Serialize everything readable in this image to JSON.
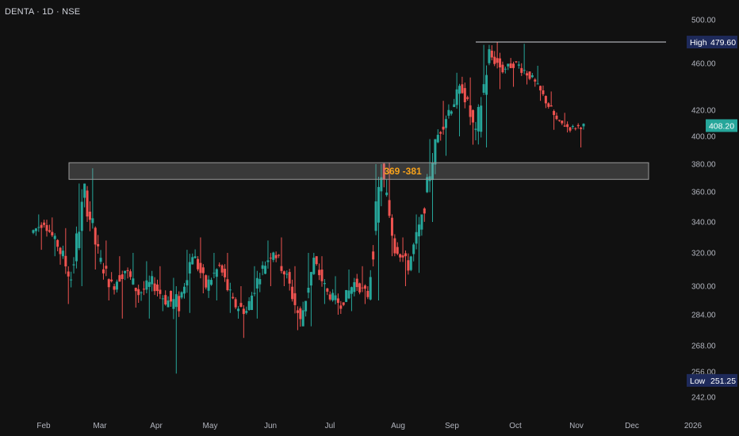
{
  "symbol": {
    "title": "DENTA · 1D · NSE"
  },
  "chart_data": {
    "type": "candlestick",
    "title": "DENTA · 1D · NSE",
    "xlabel": "",
    "ylabel": "",
    "x_ticks": [
      "Feb",
      "Mar",
      "Apr",
      "May",
      "Jun",
      "Jul",
      "Aug",
      "Sep",
      "Oct",
      "Nov",
      "Dec",
      "2026"
    ],
    "y_ticks": [
      "500.00",
      "460.00",
      "420.00",
      "400.00",
      "380.00",
      "360.00",
      "340.00",
      "320.00",
      "300.00",
      "284.00",
      "268.00",
      "256.00",
      "242.00"
    ],
    "ylim": [
      236,
      510
    ],
    "high": {
      "label": "High",
      "value": "479.60"
    },
    "low": {
      "label": "Low",
      "value": "251.25"
    },
    "last_price": "408.20",
    "zone": {
      "label": "369 -381",
      "low": 369,
      "high": 381
    },
    "resistance_line": 479.6,
    "colors": {
      "up": "#26a69a",
      "down": "#ef5350",
      "zone_text": "#f7a21b",
      "badge": "#1e2a5a",
      "last_badge": "#26a69a"
    },
    "ohlc_weekly_approx": [
      [
        "Jan 27",
        333,
        345,
        322,
        340
      ],
      [
        "Feb 3",
        340,
        343,
        318,
        325
      ],
      [
        "Feb 10",
        325,
        336,
        290,
        305
      ],
      [
        "Feb 17",
        305,
        366,
        300,
        360
      ],
      [
        "Feb 24",
        360,
        377,
        310,
        318
      ],
      [
        "Mar 3",
        318,
        328,
        292,
        300
      ],
      [
        "Mar 10",
        300,
        318,
        282,
        310
      ],
      [
        "Mar 17",
        310,
        320,
        288,
        296
      ],
      [
        "Mar 24",
        296,
        315,
        282,
        302
      ],
      [
        "Mar 31",
        302,
        312,
        286,
        292
      ],
      [
        "Apr 7",
        292,
        305,
        255,
        290
      ],
      [
        "Apr 14",
        290,
        322,
        285,
        320
      ],
      [
        "Apr 21",
        320,
        330,
        296,
        300
      ],
      [
        "Apr 28",
        300,
        320,
        292,
        312
      ],
      [
        "May 5",
        312,
        320,
        285,
        290
      ],
      [
        "May 12",
        290,
        300,
        272,
        286
      ],
      [
        "May 19",
        286,
        312,
        282,
        308
      ],
      [
        "May 26",
        308,
        328,
        300,
        322
      ],
      [
        "Jun 2",
        322,
        330,
        300,
        305
      ],
      [
        "Jun 9",
        305,
        312,
        276,
        280
      ],
      [
        "Jun 16",
        280,
        320,
        278,
        315
      ],
      [
        "Jun 23",
        315,
        318,
        290,
        296
      ],
      [
        "Jun 30",
        296,
        306,
        284,
        290
      ],
      [
        "Jul 7",
        290,
        310,
        286,
        302
      ],
      [
        "Jul 14",
        302,
        312,
        290,
        295
      ],
      [
        "Jul 21",
        295,
        380,
        292,
        375
      ],
      [
        "Jul 28",
        375,
        381,
        318,
        325
      ],
      [
        "Aug 4",
        325,
        330,
        300,
        312
      ],
      [
        "Aug 11",
        312,
        345,
        308,
        342
      ],
      [
        "Aug 18",
        342,
        398,
        340,
        396
      ],
      [
        "Aug 25",
        396,
        428,
        386,
        420
      ],
      [
        "Sep 1",
        420,
        452,
        400,
        440
      ],
      [
        "Sep 8",
        440,
        448,
        394,
        400
      ],
      [
        "Sep 15",
        400,
        477,
        392,
        468
      ],
      [
        "Sep 22",
        468,
        479.6,
        438,
        455
      ],
      [
        "Sep 29",
        455,
        465,
        440,
        460
      ],
      [
        "Oct 6",
        460,
        478,
        442,
        450
      ],
      [
        "Oct 13",
        450,
        458,
        428,
        432
      ],
      [
        "Oct 20",
        432,
        436,
        405,
        412
      ],
      [
        "Oct 27",
        412,
        418,
        403,
        406
      ],
      [
        "Nov 3",
        406,
        410,
        392,
        408.2
      ]
    ]
  }
}
